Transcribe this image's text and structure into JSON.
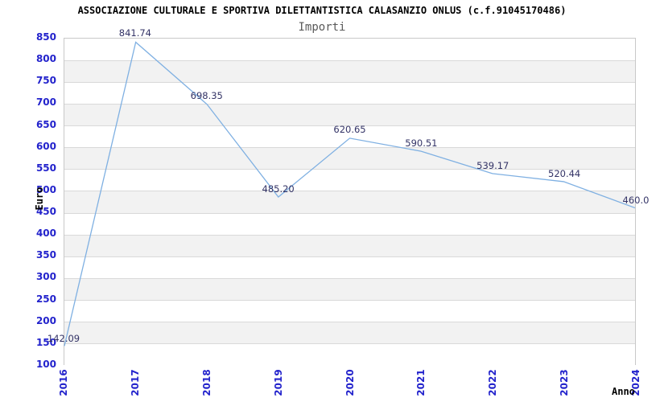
{
  "chart_data": {
    "type": "line",
    "title": "ASSOCIAZIONE CULTURALE E SPORTIVA DILETTANTISTICA CALASANZIO ONLUS (c.f.91045170486)",
    "subtitle": "Importi",
    "xlabel": "Anno",
    "ylabel": "Euro",
    "categories": [
      "2016",
      "2017",
      "2018",
      "2019",
      "2020",
      "2021",
      "2022",
      "2023",
      "2024"
    ],
    "series": [
      {
        "name": "Importi",
        "values": [
          142.09,
          841.74,
          698.35,
          485.2,
          620.65,
          590.51,
          539.17,
          520.44,
          460.0
        ]
      }
    ],
    "point_labels": [
      "142.09",
      "841.74",
      "698.35",
      "485.20",
      "620.65",
      "590.51",
      "539.17",
      "520.44",
      "460.0"
    ],
    "ylim": [
      100,
      850
    ],
    "ytick_step": 50,
    "ytick_labels": [
      "850",
      "800",
      "750",
      "700",
      "650",
      "600",
      "550",
      "500",
      "450",
      "400",
      "350",
      "300",
      "250",
      "200",
      "150",
      "100"
    ],
    "grid": true,
    "legend": "none",
    "band_pattern": "alternating-horizontal",
    "colors": {
      "line": "#7fb0e2",
      "tick_label": "#2323cc",
      "point_label": "#333366",
      "grid_line": "#d9d9d9",
      "band_gray": "#f2f2f2",
      "band_white": "#ffffff",
      "plot_border": "#c8c8c8",
      "title": "#000000",
      "subtitle": "#5a5a5a",
      "axis_label": "#000000",
      "background": "#ffffff"
    }
  }
}
